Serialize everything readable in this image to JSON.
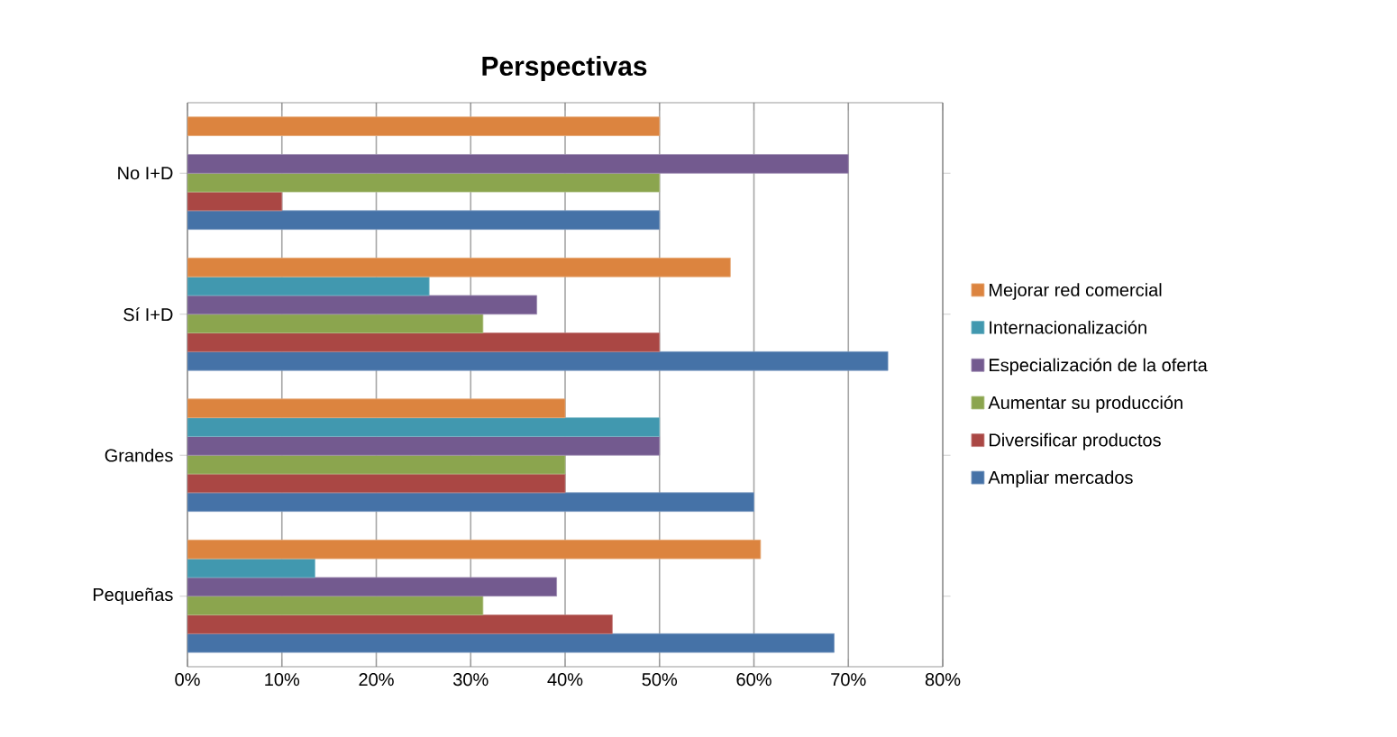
{
  "chart_data": {
    "type": "bar",
    "orientation": "horizontal",
    "title": "Perspectivas",
    "categories": [
      "No I+D",
      "Sí I+D",
      "Grandes",
      "Pequeñas"
    ],
    "series": [
      {
        "name": "Mejorar red comercial",
        "color": "#dc843f",
        "values": [
          50,
          57.5,
          40,
          60.7
        ]
      },
      {
        "name": "Internacionalización",
        "color": "#4198af",
        "values": [
          null,
          25.6,
          50,
          13.5
        ]
      },
      {
        "name": "Especialización de la oferta",
        "color": "#735a8f",
        "values": [
          70,
          37,
          50,
          39.1
        ]
      },
      {
        "name": "Aumentar su producción",
        "color": "#8ba54e",
        "values": [
          50,
          31.3,
          40,
          31.3
        ]
      },
      {
        "name": "Diversificar productos",
        "color": "#aa4744",
        "values": [
          10,
          50,
          40,
          45
        ]
      },
      {
        "name": "Ampliar mercados",
        "color": "#4572a7",
        "values": [
          50,
          74.2,
          60,
          68.5
        ]
      }
    ],
    "xlim": [
      0,
      80
    ],
    "xticks": [
      {
        "value": 0,
        "label": "0%"
      },
      {
        "value": 10,
        "label": "10%"
      },
      {
        "value": 20,
        "label": "20%"
      },
      {
        "value": 30,
        "label": "30%"
      },
      {
        "value": 40,
        "label": "40%"
      },
      {
        "value": 50,
        "label": "50%"
      },
      {
        "value": 60,
        "label": "60%"
      },
      {
        "value": 70,
        "label": "70%"
      },
      {
        "value": 80,
        "label": "80%"
      }
    ],
    "grid": "x",
    "legend": "right"
  }
}
